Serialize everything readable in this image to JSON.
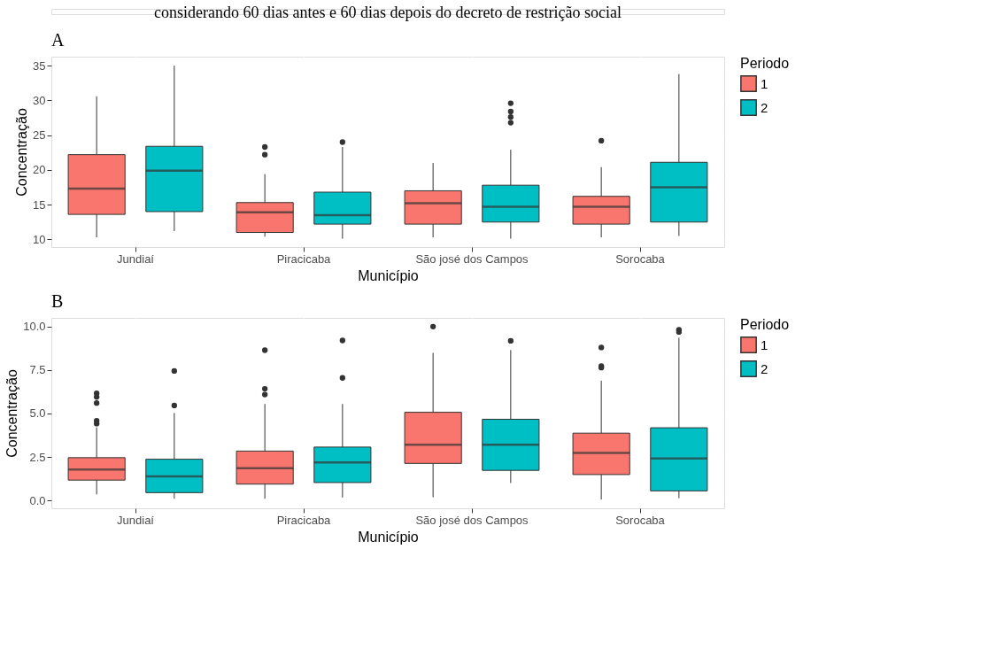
{
  "chart_data": [
    {
      "type": "box",
      "title": "A",
      "annotations": [
        "considerando 60 dias antes e 60 dias depois do decreto de restrição social"
      ],
      "xlabel": "Município",
      "ylabel": "Concentração",
      "legend_title": "Periodo",
      "legend": "right",
      "grid": true,
      "categories": [
        "Jundiaí",
        "Piracicaba",
        "São josé dos Campos",
        "Sorocaba"
      ],
      "ylim": [
        8.9,
        36.3
      ],
      "yticks": [
        10,
        15,
        20,
        25,
        30,
        35
      ],
      "series": [
        {
          "name": "1",
          "color": "#f8766d",
          "boxes": [
            {
              "low": 10.3,
              "q1": 13.6,
              "median": 17.3,
              "q3": 22.2,
              "high": 30.6
            },
            {
              "low": 10.4,
              "q1": 11.0,
              "median": 13.9,
              "q3": 15.3,
              "high": 19.4,
              "outliers": [
                23.3,
                22.2
              ]
            },
            {
              "low": 10.3,
              "q1": 12.2,
              "median": 15.2,
              "q3": 17.0,
              "high": 21.0
            },
            {
              "low": 10.3,
              "q1": 12.2,
              "median": 14.7,
              "q3": 16.2,
              "high": 20.4,
              "outliers": [
                24.2
              ]
            }
          ]
        },
        {
          "name": "2",
          "color": "#00bfc4",
          "boxes": [
            {
              "low": 11.2,
              "q1": 14.0,
              "median": 19.9,
              "q3": 23.4,
              "high": 35.0
            },
            {
              "low": 10.1,
              "q1": 12.2,
              "median": 13.5,
              "q3": 16.8,
              "high": 23.3,
              "outliers": [
                24.0
              ]
            },
            {
              "low": 10.1,
              "q1": 12.5,
              "median": 14.7,
              "q3": 17.8,
              "high": 22.9,
              "outliers": [
                29.6,
                28.4,
                27.6,
                26.8
              ]
            },
            {
              "low": 10.5,
              "q1": 12.5,
              "median": 17.5,
              "q3": 21.1,
              "high": 33.8
            }
          ]
        }
      ]
    },
    {
      "type": "box",
      "title": "B",
      "xlabel": "Município",
      "ylabel": "Concentração",
      "legend_title": "Periodo",
      "legend": "right",
      "grid": true,
      "categories": [
        "Jundiaí",
        "Piracicaba",
        "São josé dos Campos",
        "Sorocaba"
      ],
      "ylim": [
        -0.45,
        10.5
      ],
      "yticks": [
        {
          "value": 0,
          "label": "0.0"
        },
        {
          "value": 2.5,
          "label": "2.5"
        },
        {
          "value": 5,
          "label": "5.0"
        },
        {
          "value": 7.5,
          "label": "7.5"
        },
        {
          "value": 10,
          "label": "10.0"
        }
      ],
      "series": [
        {
          "name": "1",
          "color": "#f8766d",
          "boxes": [
            {
              "low": 0.35,
              "q1": 1.17,
              "median": 1.78,
              "q3": 2.46,
              "high": 4.2,
              "outliers": [
                6.16,
                5.95,
                5.6,
                4.59,
                4.42
              ]
            },
            {
              "low": 0.1,
              "q1": 0.94,
              "median": 1.85,
              "q3": 2.84,
              "high": 5.55,
              "outliers": [
                8.64,
                6.42,
                6.09
              ]
            },
            {
              "low": 0.18,
              "q1": 2.13,
              "median": 3.2,
              "q3": 5.07,
              "high": 8.49,
              "outliers": [
                10.0
              ]
            },
            {
              "low": 0.05,
              "q1": 1.49,
              "median": 2.73,
              "q3": 3.87,
              "high": 6.89,
              "outliers": [
                8.8,
                7.73,
                7.64
              ]
            }
          ]
        },
        {
          "name": "2",
          "color": "#00bfc4",
          "boxes": [
            {
              "low": 0.1,
              "q1": 0.45,
              "median": 1.38,
              "q3": 2.37,
              "high": 5.03,
              "outliers": [
                7.45,
                5.46
              ]
            },
            {
              "low": 0.17,
              "q1": 1.03,
              "median": 2.18,
              "q3": 3.07,
              "high": 5.55,
              "outliers": [
                9.2,
                7.05
              ]
            },
            {
              "low": 1.0,
              "q1": 1.73,
              "median": 3.2,
              "q3": 4.67,
              "high": 8.65,
              "outliers": [
                9.18
              ]
            },
            {
              "low": 0.13,
              "q1": 0.55,
              "median": 2.42,
              "q3": 4.18,
              "high": 9.36,
              "outliers": [
                9.82,
                9.69
              ]
            }
          ]
        }
      ]
    }
  ]
}
